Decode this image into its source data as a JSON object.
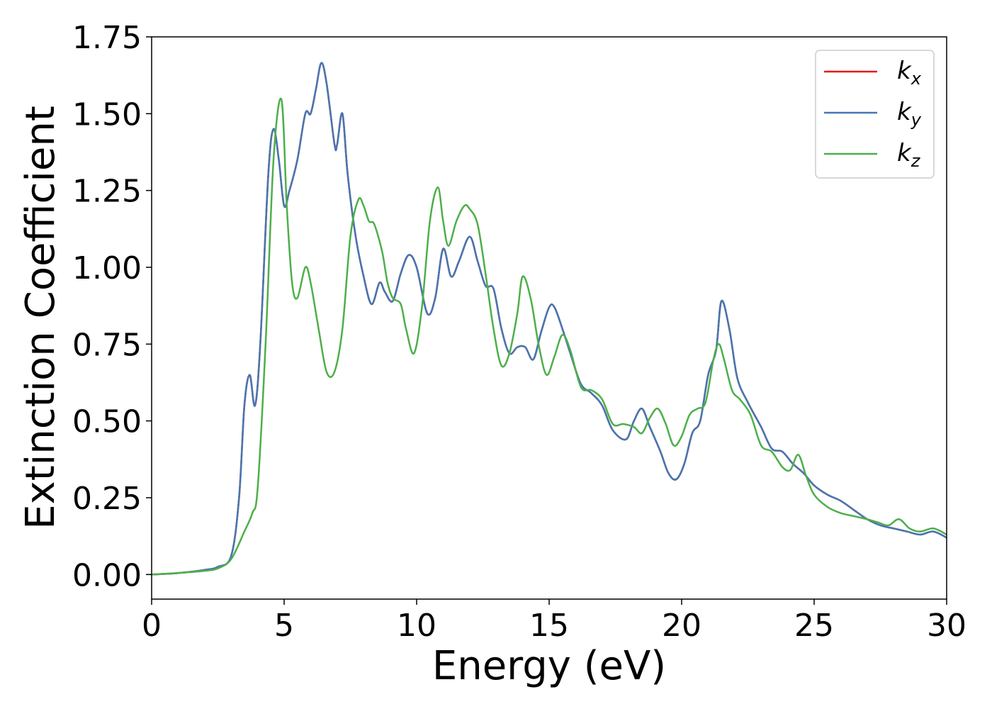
{
  "chart_data": {
    "type": "line",
    "title": "",
    "xlabel": "Energy (eV)",
    "ylabel": "Extinction Coefficient",
    "xlim": [
      0,
      30
    ],
    "ylim": [
      -0.08,
      1.75
    ],
    "xticks": [
      0,
      5,
      10,
      15,
      20,
      25,
      30
    ],
    "xtick_labels": [
      "0",
      "5",
      "10",
      "15",
      "20",
      "25",
      "30"
    ],
    "yticks": [
      0,
      0.25,
      0.5,
      0.75,
      1.0,
      1.25,
      1.5,
      1.75
    ],
    "ytick_labels": [
      "0.00",
      "0.25",
      "0.50",
      "0.75",
      "1.00",
      "1.25",
      "1.50",
      "1.75"
    ],
    "grid": false,
    "legend_position": "top-right",
    "series": [
      {
        "name": "k",
        "subscript": "x",
        "color": "#e41a1c",
        "x": [
          0,
          1,
          2,
          2.5,
          3.0,
          3.3,
          3.5,
          3.7,
          3.9,
          4.1,
          4.4,
          4.6,
          4.8,
          5.0,
          5.2,
          5.5,
          5.8,
          6.0,
          6.2,
          6.4,
          6.6,
          6.9,
          7.0,
          7.2,
          7.4,
          7.7,
          8.0,
          8.3,
          8.6,
          8.8,
          9.1,
          9.4,
          9.7,
          10.0,
          10.4,
          10.7,
          11.0,
          11.3,
          11.6,
          12.0,
          12.3,
          12.6,
          12.9,
          13.2,
          13.5,
          13.8,
          14.1,
          14.4,
          14.7,
          15.0,
          15.2,
          15.5,
          15.8,
          16.2,
          16.6,
          17.0,
          17.4,
          17.9,
          18.2,
          18.5,
          18.8,
          19.2,
          19.5,
          19.8,
          20.1,
          20.4,
          20.7,
          21.0,
          21.3,
          21.5,
          21.8,
          22.1,
          22.5,
          23.0,
          23.4,
          23.8,
          24.2,
          24.6,
          25.0,
          25.5,
          26.0,
          26.5,
          27.0,
          27.5,
          28.0,
          28.5,
          29.0,
          29.5,
          30
        ],
        "values": [
          0.0,
          0.005,
          0.015,
          0.025,
          0.06,
          0.25,
          0.55,
          0.65,
          0.55,
          0.75,
          1.3,
          1.45,
          1.35,
          1.2,
          1.25,
          1.35,
          1.5,
          1.5,
          1.58,
          1.665,
          1.6,
          1.4,
          1.4,
          1.5,
          1.3,
          1.1,
          0.97,
          0.88,
          0.95,
          0.92,
          0.89,
          0.98,
          1.04,
          1.0,
          0.85,
          0.9,
          1.06,
          0.97,
          1.02,
          1.1,
          1.02,
          0.94,
          0.93,
          0.8,
          0.72,
          0.74,
          0.74,
          0.7,
          0.79,
          0.87,
          0.87,
          0.8,
          0.72,
          0.62,
          0.59,
          0.55,
          0.47,
          0.44,
          0.5,
          0.54,
          0.48,
          0.4,
          0.33,
          0.31,
          0.36,
          0.46,
          0.5,
          0.65,
          0.73,
          0.89,
          0.8,
          0.64,
          0.56,
          0.48,
          0.41,
          0.4,
          0.36,
          0.33,
          0.29,
          0.26,
          0.24,
          0.21,
          0.18,
          0.16,
          0.15,
          0.14,
          0.13,
          0.14,
          0.12
        ]
      },
      {
        "name": "k",
        "subscript": "y",
        "color": "#4477b2",
        "x": [
          0,
          1,
          2,
          2.5,
          3.0,
          3.3,
          3.5,
          3.7,
          3.9,
          4.1,
          4.4,
          4.6,
          4.8,
          5.0,
          5.2,
          5.5,
          5.8,
          6.0,
          6.2,
          6.4,
          6.6,
          6.9,
          7.0,
          7.2,
          7.4,
          7.7,
          8.0,
          8.3,
          8.6,
          8.8,
          9.1,
          9.4,
          9.7,
          10.0,
          10.4,
          10.7,
          11.0,
          11.3,
          11.6,
          12.0,
          12.3,
          12.6,
          12.9,
          13.2,
          13.5,
          13.8,
          14.1,
          14.4,
          14.7,
          15.0,
          15.2,
          15.5,
          15.8,
          16.2,
          16.6,
          17.0,
          17.4,
          17.9,
          18.2,
          18.5,
          18.8,
          19.2,
          19.5,
          19.8,
          20.1,
          20.4,
          20.7,
          21.0,
          21.3,
          21.5,
          21.8,
          22.1,
          22.5,
          23.0,
          23.4,
          23.8,
          24.2,
          24.6,
          25.0,
          25.5,
          26.0,
          26.5,
          27.0,
          27.5,
          28.0,
          28.5,
          29.0,
          29.5,
          30
        ],
        "values": [
          0.0,
          0.005,
          0.015,
          0.025,
          0.06,
          0.25,
          0.55,
          0.65,
          0.55,
          0.75,
          1.3,
          1.45,
          1.35,
          1.2,
          1.25,
          1.35,
          1.5,
          1.5,
          1.58,
          1.665,
          1.6,
          1.4,
          1.4,
          1.5,
          1.3,
          1.1,
          0.97,
          0.88,
          0.95,
          0.92,
          0.89,
          0.98,
          1.04,
          1.0,
          0.85,
          0.9,
          1.06,
          0.97,
          1.02,
          1.1,
          1.02,
          0.94,
          0.93,
          0.8,
          0.72,
          0.74,
          0.74,
          0.7,
          0.79,
          0.87,
          0.87,
          0.8,
          0.72,
          0.62,
          0.59,
          0.55,
          0.47,
          0.44,
          0.5,
          0.54,
          0.48,
          0.4,
          0.33,
          0.31,
          0.36,
          0.46,
          0.5,
          0.65,
          0.73,
          0.89,
          0.8,
          0.64,
          0.56,
          0.48,
          0.41,
          0.4,
          0.36,
          0.33,
          0.29,
          0.26,
          0.24,
          0.21,
          0.18,
          0.16,
          0.15,
          0.14,
          0.13,
          0.14,
          0.12
        ]
      },
      {
        "name": "k",
        "subscript": "z",
        "color": "#4daf4a",
        "x": [
          0,
          1,
          2,
          2.5,
          3.0,
          3.5,
          3.8,
          4.0,
          4.3,
          4.6,
          4.9,
          5.1,
          5.3,
          5.5,
          5.8,
          6.0,
          6.3,
          6.6,
          6.9,
          7.2,
          7.5,
          7.8,
          8.0,
          8.2,
          8.4,
          8.7,
          8.9,
          9.1,
          9.4,
          9.6,
          9.9,
          10.2,
          10.5,
          10.8,
          11.0,
          11.2,
          11.5,
          11.8,
          12.0,
          12.3,
          12.6,
          12.9,
          13.2,
          13.5,
          13.8,
          14.0,
          14.3,
          14.6,
          14.9,
          15.2,
          15.5,
          15.8,
          16.2,
          16.6,
          17.0,
          17.4,
          17.8,
          18.2,
          18.5,
          18.8,
          19.1,
          19.4,
          19.7,
          20.0,
          20.3,
          20.6,
          20.9,
          21.2,
          21.4,
          21.6,
          21.9,
          22.2,
          22.6,
          23.0,
          23.4,
          23.8,
          24.1,
          24.4,
          24.7,
          25.0,
          25.5,
          26.0,
          26.5,
          27.0,
          27.4,
          27.8,
          28.2,
          28.6,
          29.0,
          29.5,
          30
        ],
        "values": [
          0.0,
          0.005,
          0.012,
          0.02,
          0.05,
          0.14,
          0.2,
          0.28,
          0.75,
          1.35,
          1.545,
          1.2,
          0.95,
          0.9,
          1.0,
          0.95,
          0.8,
          0.66,
          0.66,
          0.8,
          1.1,
          1.22,
          1.2,
          1.15,
          1.14,
          1.05,
          0.95,
          0.9,
          0.88,
          0.8,
          0.72,
          0.87,
          1.15,
          1.26,
          1.15,
          1.07,
          1.15,
          1.2,
          1.19,
          1.14,
          0.98,
          0.8,
          0.68,
          0.72,
          0.85,
          0.97,
          0.9,
          0.75,
          0.65,
          0.71,
          0.78,
          0.73,
          0.61,
          0.6,
          0.57,
          0.49,
          0.49,
          0.48,
          0.46,
          0.51,
          0.54,
          0.49,
          0.42,
          0.45,
          0.52,
          0.54,
          0.56,
          0.7,
          0.75,
          0.7,
          0.6,
          0.57,
          0.52,
          0.42,
          0.4,
          0.35,
          0.34,
          0.39,
          0.32,
          0.26,
          0.22,
          0.2,
          0.19,
          0.18,
          0.17,
          0.16,
          0.18,
          0.15,
          0.14,
          0.15,
          0.13
        ]
      }
    ]
  }
}
